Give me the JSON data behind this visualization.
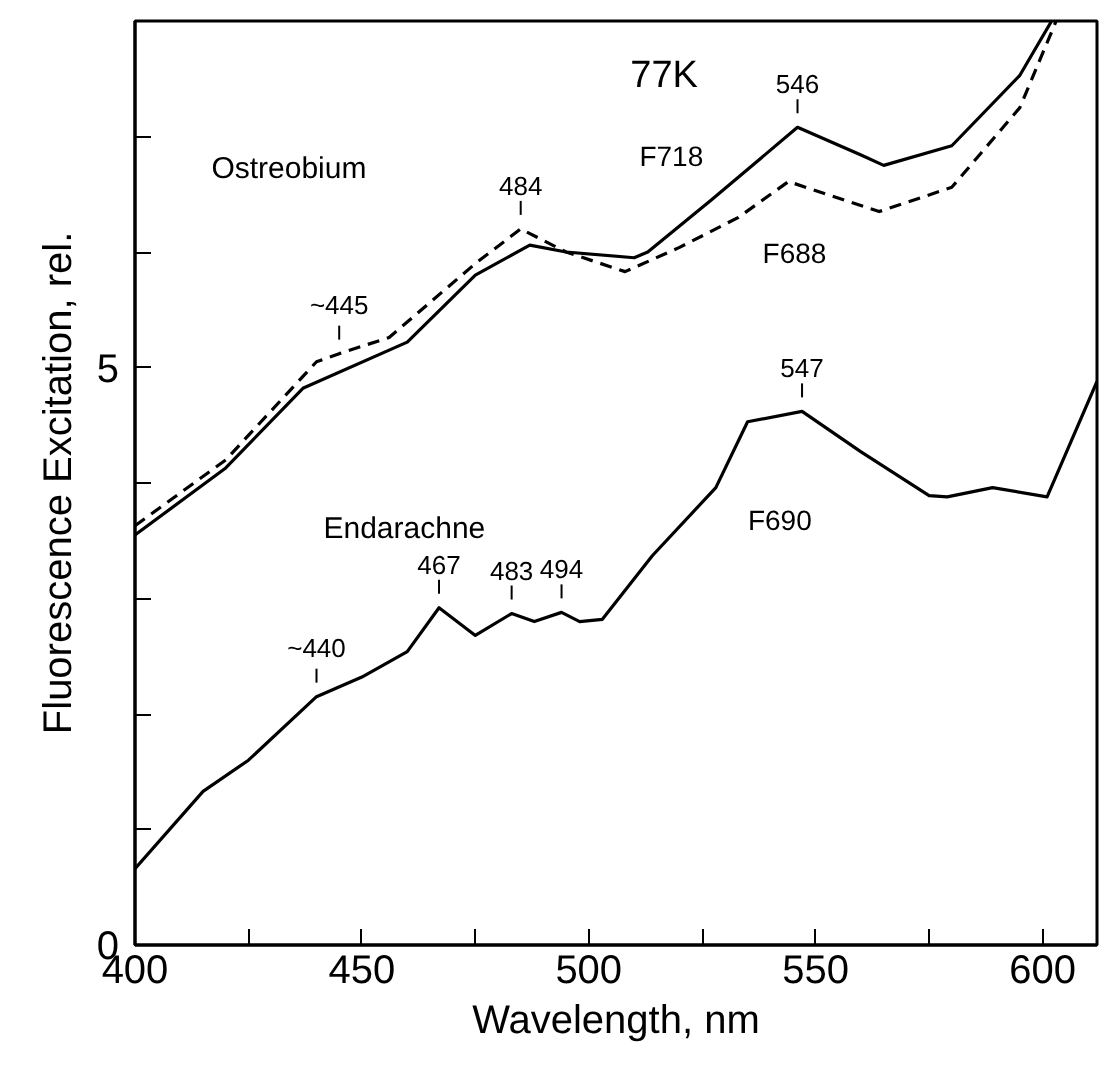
{
  "chart_data": {
    "type": "line",
    "xlabel": "Wavelength, nm",
    "ylabel": "Fluorescence Excitation, rel.",
    "xlim": [
      400,
      612
    ],
    "ylim": [
      0,
      8
    ],
    "xticks": [
      400,
      {
        "value": 425,
        "label": null
      },
      450,
      {
        "value": 475,
        "label": null
      },
      500,
      {
        "value": 525,
        "label": null
      },
      550,
      {
        "value": 575,
        "label": null
      },
      600
    ],
    "yticks": [
      0,
      {
        "value": 1,
        "label": null
      },
      {
        "value": 2,
        "label": null
      },
      {
        "value": 3,
        "label": null
      },
      {
        "value": 4,
        "label": null
      },
      5,
      {
        "value": 6,
        "label": null
      },
      {
        "value": 7,
        "label": null
      },
      {
        "value": 8,
        "label": null
      }
    ],
    "grid": false,
    "series": [
      {
        "name": "F718",
        "color": "#000000",
        "line_style": "solid",
        "x": [
          400,
          420,
          437,
          460,
          475,
          487,
          495,
          510,
          513,
          527,
          546,
          560,
          565,
          580,
          595,
          602
        ],
        "values": [
          3.55,
          4.13,
          4.82,
          5.22,
          5.8,
          6.06,
          6.0,
          5.95,
          6.0,
          6.45,
          7.08,
          6.84,
          6.75,
          6.92,
          7.53,
          8.0
        ]
      },
      {
        "name": "F688",
        "color": "#000000",
        "line_style": "dashed",
        "x": [
          400,
          420,
          440,
          445,
          456,
          475,
          485,
          495,
          508,
          520,
          533,
          544,
          564,
          580,
          595,
          603
        ],
        "values": [
          3.63,
          4.2,
          5.05,
          5.12,
          5.26,
          5.9,
          6.2,
          6.0,
          5.83,
          6.04,
          6.3,
          6.61,
          6.35,
          6.56,
          7.25,
          8.0
        ]
      },
      {
        "name": "F690",
        "color": "#000000",
        "line_style": "solid",
        "x": [
          400,
          415,
          425,
          440,
          450,
          460,
          467,
          475,
          483,
          488,
          494,
          498,
          503,
          514,
          528,
          535,
          547,
          560,
          575,
          579,
          589,
          601,
          612
        ],
        "values": [
          0.66,
          1.33,
          1.6,
          2.15,
          2.32,
          2.54,
          2.92,
          2.68,
          2.87,
          2.8,
          2.88,
          2.8,
          2.82,
          3.37,
          3.96,
          4.53,
          4.62,
          4.27,
          3.89,
          3.88,
          3.96,
          3.88,
          4.88
        ]
      }
    ],
    "annotations": [
      "77K",
      "Ostreobium",
      "Endarachne",
      {
        "text": "~445",
        "x": 445,
        "y": 5.12
      },
      {
        "text": "484",
        "x": 485,
        "y": 6.2
      },
      {
        "text": "546",
        "x": 546,
        "y": 7.08
      },
      {
        "text": "547",
        "x": 547,
        "y": 4.62
      },
      {
        "text": "~440",
        "x": 440,
        "y": 2.15
      },
      {
        "text": "467",
        "x": 467,
        "y": 2.92
      },
      {
        "text": "483",
        "x": 483,
        "y": 2.87
      },
      {
        "text": "494",
        "x": 494,
        "y": 2.88
      }
    ]
  }
}
